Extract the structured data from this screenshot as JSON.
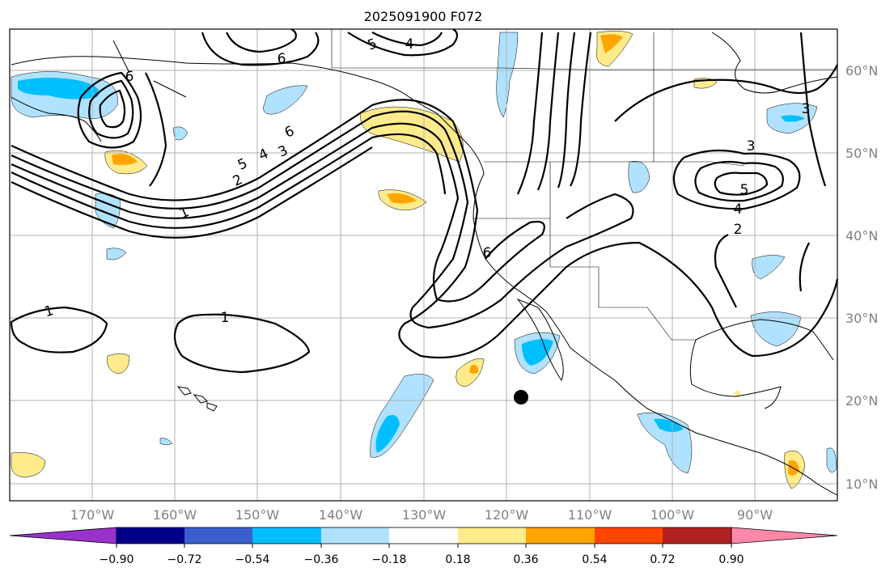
{
  "title": "2025091900 F072",
  "lat_labels": [
    "60°N",
    "50°N",
    "40°N",
    "30°N",
    "20°N",
    "10°N"
  ],
  "lon_labels": [
    "170°W",
    "160°W",
    "150°W",
    "140°W",
    "130°W",
    "120°W",
    "110°W",
    "100°W",
    "90°W"
  ],
  "colorbar": {
    "ticks": [
      "−0.90",
      "−0.72",
      "−0.54",
      "−0.36",
      "−0.18",
      "0.18",
      "0.36",
      "0.54",
      "0.72",
      "0.90"
    ],
    "colors": [
      "#9932cc",
      "#00008b",
      "#3a5fcd",
      "#00bfff",
      "#b0e2ff",
      "#ffffff",
      "#ffeb8b",
      "#ffa500",
      "#ff4500",
      "#b22222",
      "#ff88aa"
    ]
  },
  "contour_labels": {
    "c1_a": "1",
    "c1_b": "1",
    "c1_c": "1",
    "c2_a": "2",
    "c2_b": "2",
    "c3_a": "3",
    "c3_b": "3",
    "c3_c": "3",
    "c4_a": "4",
    "c4_b": "4",
    "c5_a": "5",
    "c5_b": "5",
    "c6_a": "6",
    "c6_b": "6",
    "c6_c": "6",
    "c6_d": "6"
  },
  "marker": {
    "lon": "118°W",
    "lat": "20°N"
  },
  "colors": {
    "light_blue": "#b0e2ff",
    "deep_sky_blue": "#00bfff",
    "light_yellow": "#ffeb8b",
    "orange": "#ffa500",
    "grid": "#b0b0b0",
    "axis_label": "#808080"
  }
}
